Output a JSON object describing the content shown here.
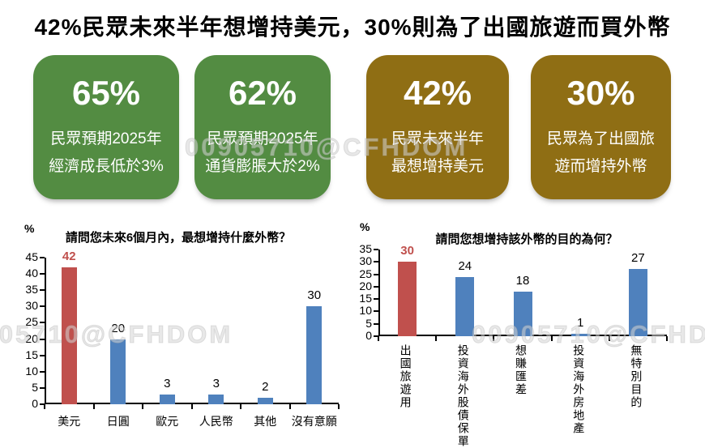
{
  "title": "42%民眾未來半年想增持美元，30%則為了出國旅遊而買外幣",
  "watermark": "00905710@CFHDOM",
  "colors": {
    "card_green": "#538c42",
    "card_gold": "#8f6e14",
    "bar_red": "#c0504d",
    "bar_blue": "#4f81bd",
    "axis_black": "#000000"
  },
  "stat_cards": [
    {
      "value": "65%",
      "lines": [
        "民眾預期2025年",
        "經濟成長低於3%"
      ]
    },
    {
      "value": "62%",
      "lines": [
        "民眾預期2025年",
        "通貨膨脹大於2%"
      ]
    },
    {
      "value": "42%",
      "lines": [
        "民眾未來半年",
        "最想增持美元"
      ]
    },
    {
      "value": "30%",
      "lines": [
        "民眾為了出國旅",
        "遊而增持外幣"
      ]
    }
  ],
  "chart_data": [
    {
      "type": "bar",
      "title": "請問您未來6個月內，最想增持什麼外幣？",
      "ylabel": "%",
      "categories": [
        "美元",
        "日圓",
        "歐元",
        "人民幣",
        "其他",
        "沒有意願"
      ],
      "values": [
        42,
        20,
        3,
        3,
        2,
        30
      ],
      "bar_colors": [
        "#c0504d",
        "#4f81bd",
        "#4f81bd",
        "#4f81bd",
        "#4f81bd",
        "#4f81bd"
      ],
      "label_colors": [
        "#c0504d",
        "#000000",
        "#000000",
        "#000000",
        "#000000",
        "#000000"
      ],
      "ylim": [
        0,
        45
      ],
      "ytick_step": 5,
      "grid": false,
      "legend": false,
      "x_label_orientation": "horizontal"
    },
    {
      "type": "bar",
      "title": "請問您想增持該外幣的目的為何？",
      "ylabel": "%",
      "categories": [
        "出國旅遊用",
        "投資海外股債保單",
        "想賺匯差",
        "投資海外房地產",
        "無特別目的"
      ],
      "values": [
        30,
        24,
        18,
        1,
        27
      ],
      "bar_colors": [
        "#c0504d",
        "#4f81bd",
        "#4f81bd",
        "#4f81bd",
        "#4f81bd"
      ],
      "label_colors": [
        "#c0504d",
        "#000000",
        "#000000",
        "#000000",
        "#000000"
      ],
      "ylim": [
        0,
        35
      ],
      "ytick_step": 5,
      "grid": false,
      "legend": false,
      "x_label_orientation": "vertical"
    }
  ]
}
